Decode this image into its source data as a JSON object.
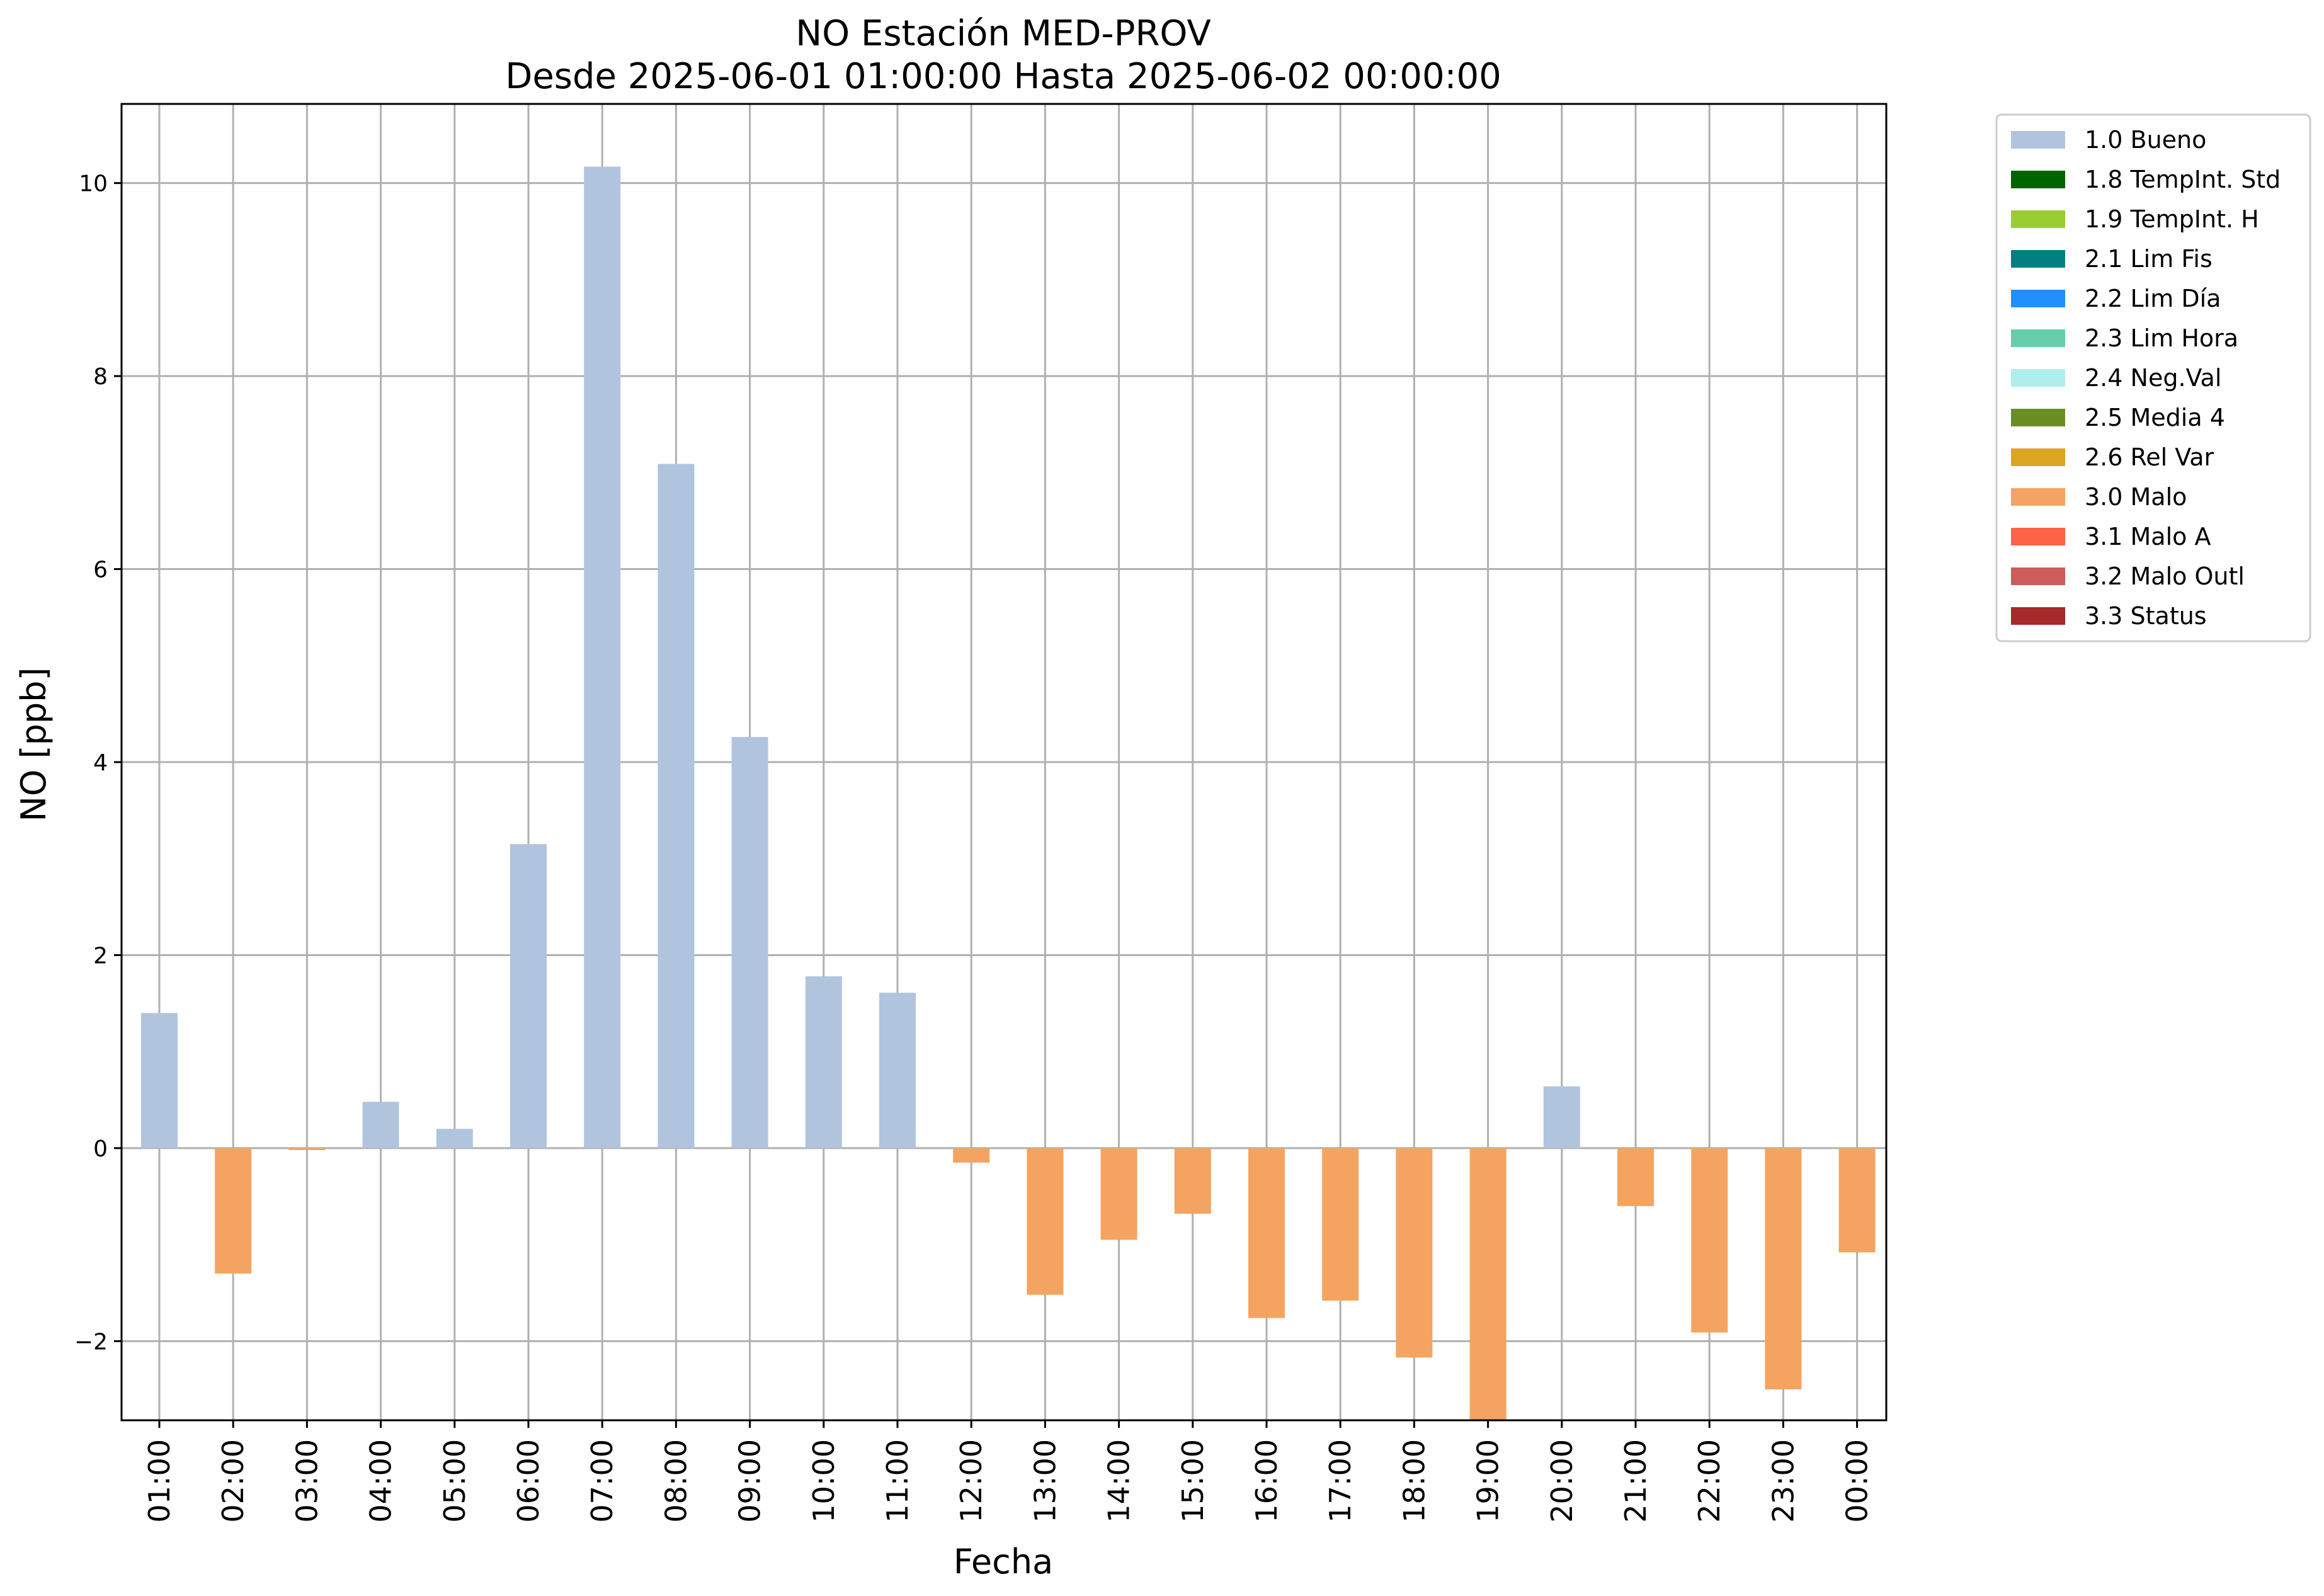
{
  "chart_data": {
    "type": "bar",
    "title": "NO Estación MED-PROV",
    "subtitle": "Desde 2025-06-01 01:00:00 Hasta 2025-06-02 00:00:00",
    "xlabel": "Fecha",
    "ylabel": "NO [ppb]",
    "ylim": [
      -2.82,
      10.82
    ],
    "yticks": [
      -2,
      0,
      2,
      4,
      6,
      8,
      10
    ],
    "grid": true,
    "legend_position": "outside-top-right",
    "categories": [
      "01:00",
      "02:00",
      "03:00",
      "04:00",
      "05:00",
      "06:00",
      "07:00",
      "08:00",
      "09:00",
      "10:00",
      "11:00",
      "12:00",
      "13:00",
      "14:00",
      "15:00",
      "16:00",
      "17:00",
      "18:00",
      "19:00",
      "20:00",
      "21:00",
      "22:00",
      "23:00",
      "00:00"
    ],
    "values": [
      1.4,
      -1.3,
      -0.02,
      0.48,
      0.2,
      3.15,
      10.17,
      7.09,
      4.26,
      1.78,
      1.61,
      -0.15,
      -1.52,
      -0.95,
      -0.68,
      -1.76,
      -1.58,
      -2.17,
      -2.82,
      0.64,
      -0.6,
      -1.91,
      -2.5,
      -1.08
    ],
    "flags": [
      "1.0 Bueno",
      "3.0 Malo",
      "3.0 Malo",
      "1.0 Bueno",
      "1.0 Bueno",
      "1.0 Bueno",
      "1.0 Bueno",
      "1.0 Bueno",
      "1.0 Bueno",
      "1.0 Bueno",
      "1.0 Bueno",
      "3.0 Malo",
      "3.0 Malo",
      "3.0 Malo",
      "3.0 Malo",
      "3.0 Malo",
      "3.0 Malo",
      "3.0 Malo",
      "3.0 Malo",
      "1.0 Bueno",
      "3.0 Malo",
      "3.0 Malo",
      "3.0 Malo",
      "3.0 Malo"
    ],
    "legend": [
      {
        "label": "1.0 Bueno",
        "color": "#b0c4de"
      },
      {
        "label": "1.8 TempInt. Std",
        "color": "#006400"
      },
      {
        "label": "1.9 TempInt. H",
        "color": "#9acd32"
      },
      {
        "label": "2.1 Lim Fis",
        "color": "#008080"
      },
      {
        "label": "2.2 Lim Día",
        "color": "#1e90ff"
      },
      {
        "label": "2.3 Lim Hora",
        "color": "#66cdaa"
      },
      {
        "label": "2.4 Neg.Val",
        "color": "#afeeee"
      },
      {
        "label": "2.5 Media 4",
        "color": "#6b8e23"
      },
      {
        "label": "2.6 Rel Var",
        "color": "#daa520"
      },
      {
        "label": "3.0 Malo",
        "color": "#f4a460"
      },
      {
        "label": "3.1 Malo A",
        "color": "#ff6347"
      },
      {
        "label": "3.2 Malo Outl",
        "color": "#cd5c5c"
      },
      {
        "label": "3.3 Status",
        "color": "#a52a2a"
      }
    ]
  }
}
